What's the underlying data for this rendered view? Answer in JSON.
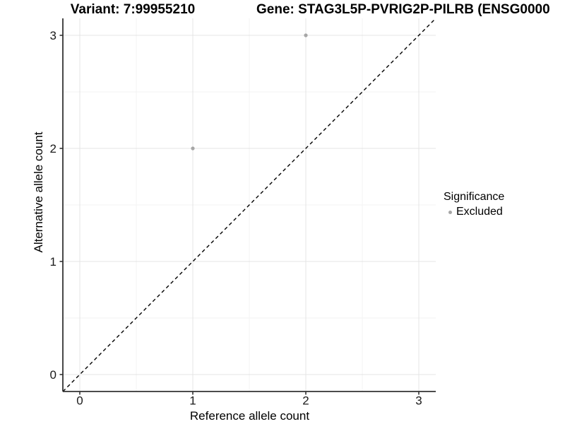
{
  "chart_data": {
    "type": "scatter",
    "titles": {
      "variant": "Variant: 7:99955210",
      "gene": "Gene: STAG3L5P-PVRIG2P-PILRB (ENSG0000"
    },
    "xlabel": "Reference allele count",
    "ylabel": "Alternative allele count",
    "x_ticks": [
      0,
      1,
      2,
      3
    ],
    "y_ticks": [
      0,
      1,
      2,
      3
    ],
    "x_minor": [
      0.5,
      1.5,
      2.5
    ],
    "y_minor": [
      0.5,
      1.5,
      2.5
    ],
    "xlim": [
      -0.15,
      3.15
    ],
    "ylim": [
      -0.15,
      3.15
    ],
    "grid": "major and minor, light gray on white",
    "legend": {
      "title": "Significance",
      "position": "right",
      "entries": [
        {
          "label": "Excluded",
          "color": "#a6a6a6"
        }
      ]
    },
    "series": [
      {
        "name": "Excluded",
        "color": "#a6a6a6",
        "points": [
          {
            "x": 1,
            "y": 2
          },
          {
            "x": 2,
            "y": 3
          }
        ]
      }
    ],
    "reference_line": {
      "style": "dashed",
      "slope": 1,
      "intercept": 0,
      "color": "#000000"
    },
    "colors": {
      "grid_major": "#e4e4e4",
      "grid_minor": "#f3f3f3",
      "axis": "#333333",
      "tick_label": "#1a1a1a"
    }
  }
}
